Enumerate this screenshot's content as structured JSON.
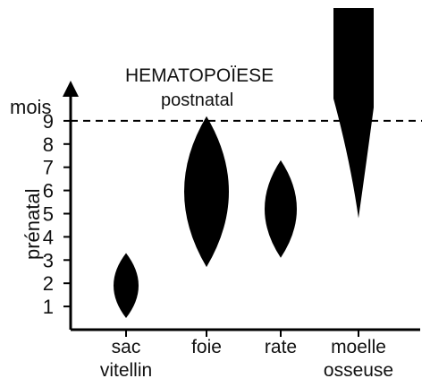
{
  "chart_data": {
    "type": "range",
    "title": "HEMATOPOÏESE",
    "postnatal_label": "postnatal",
    "y_unit_label": "mois",
    "y_axis_label": "prénatal",
    "y_ticks": [
      "1",
      "2",
      "3",
      "4",
      "5",
      "6",
      "7",
      "8",
      "9"
    ],
    "ylim": [
      0,
      9
    ],
    "birth_line": 9,
    "categories": [
      {
        "line1": "sac",
        "line2": "vitellin"
      },
      {
        "line1": "foie",
        "line2": ""
      },
      {
        "line1": "rate",
        "line2": ""
      },
      {
        "line1": "moelle",
        "line2": "osseuse"
      }
    ],
    "ranges": [
      {
        "start": 0.5,
        "end": 3.3,
        "shape": "spindle"
      },
      {
        "start": 2.7,
        "end": 9.2,
        "shape": "spindle"
      },
      {
        "start": 3.1,
        "end": 7.3,
        "shape": "spindle"
      },
      {
        "start": 4.8,
        "end": 9,
        "shape": "wedge",
        "continues_postnatal": true
      }
    ],
    "colors": {
      "fill": "#000000",
      "axis": "#000000",
      "text": "#111111"
    }
  }
}
